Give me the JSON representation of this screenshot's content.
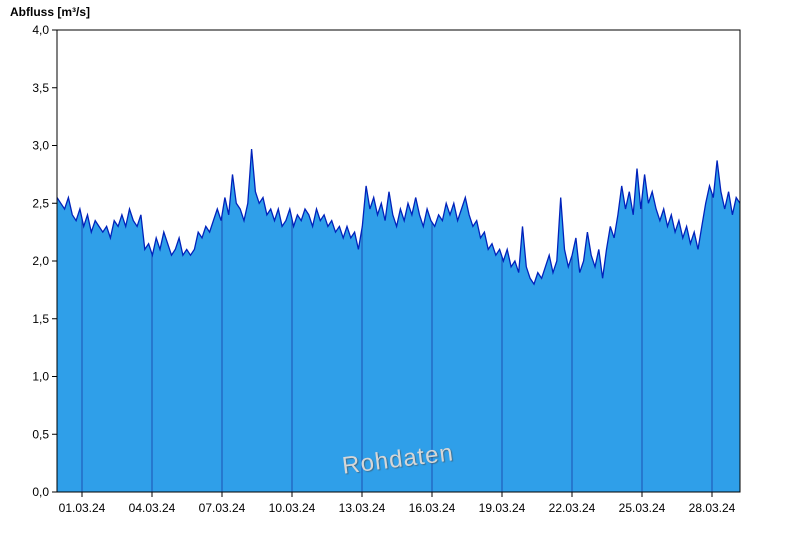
{
  "header": {
    "y_axis_title": "Abfluss [m³/s]"
  },
  "watermark": "Rohdaten",
  "chart_data": {
    "type": "area",
    "title": "",
    "ylabel": "Abfluss [m³/s]",
    "xlabel": "",
    "ylim": [
      0,
      4
    ],
    "ytick_step": 0.5,
    "y_tick_labels": [
      "4,0",
      "3,5",
      "3,0",
      "2,5",
      "2,0",
      "1,5",
      "1,0",
      "0,5",
      "0,0"
    ],
    "x_tick_labels": [
      "01.03.24",
      "04.03.24",
      "07.03.24",
      "10.03.24",
      "13.03.24",
      "16.03.24",
      "19.03.24",
      "22.03.24",
      "25.03.24",
      "28.03.24"
    ],
    "legend": "none",
    "grid": "vertical date gridlines visible inside filled area only",
    "watermark": "Rohdaten",
    "series": [
      {
        "name": "Abfluss",
        "unit": "m³/s",
        "values": [
          2.55,
          2.5,
          2.45,
          2.55,
          2.4,
          2.35,
          2.45,
          2.3,
          2.4,
          2.25,
          2.35,
          2.3,
          2.25,
          2.3,
          2.2,
          2.35,
          2.3,
          2.4,
          2.3,
          2.45,
          2.35,
          2.3,
          2.4,
          2.1,
          2.15,
          2.05,
          2.2,
          2.1,
          2.25,
          2.15,
          2.05,
          2.1,
          2.2,
          2.05,
          2.1,
          2.05,
          2.1,
          2.25,
          2.2,
          2.3,
          2.25,
          2.35,
          2.45,
          2.35,
          2.55,
          2.4,
          2.75,
          2.5,
          2.45,
          2.35,
          2.5,
          2.97,
          2.6,
          2.5,
          2.55,
          2.4,
          2.45,
          2.35,
          2.45,
          2.3,
          2.35,
          2.45,
          2.3,
          2.4,
          2.35,
          2.45,
          2.4,
          2.3,
          2.45,
          2.35,
          2.4,
          2.3,
          2.35,
          2.25,
          2.3,
          2.2,
          2.3,
          2.2,
          2.25,
          2.1,
          2.3,
          2.65,
          2.45,
          2.55,
          2.4,
          2.5,
          2.35,
          2.6,
          2.4,
          2.3,
          2.45,
          2.35,
          2.5,
          2.4,
          2.55,
          2.4,
          2.3,
          2.45,
          2.35,
          2.3,
          2.4,
          2.35,
          2.5,
          2.4,
          2.5,
          2.35,
          2.45,
          2.55,
          2.4,
          2.3,
          2.35,
          2.2,
          2.25,
          2.1,
          2.15,
          2.05,
          2.1,
          2.0,
          2.1,
          1.95,
          2.0,
          1.9,
          2.3,
          1.95,
          1.85,
          1.8,
          1.9,
          1.85,
          1.95,
          2.05,
          1.9,
          2.0,
          2.55,
          2.1,
          1.95,
          2.05,
          2.2,
          1.9,
          2.0,
          2.25,
          2.05,
          1.95,
          2.1,
          1.85,
          2.1,
          2.3,
          2.2,
          2.4,
          2.65,
          2.45,
          2.6,
          2.4,
          2.8,
          2.45,
          2.75,
          2.5,
          2.6,
          2.45,
          2.35,
          2.45,
          2.3,
          2.4,
          2.25,
          2.35,
          2.2,
          2.3,
          2.15,
          2.25,
          2.1,
          2.3,
          2.5,
          2.65,
          2.55,
          2.87,
          2.6,
          2.45,
          2.6,
          2.4,
          2.55,
          2.5
        ]
      }
    ],
    "colors": {
      "fill": "#2f9fe9",
      "line": "#0022bb",
      "grid": "#1e50b4",
      "axis": "#000000"
    }
  }
}
